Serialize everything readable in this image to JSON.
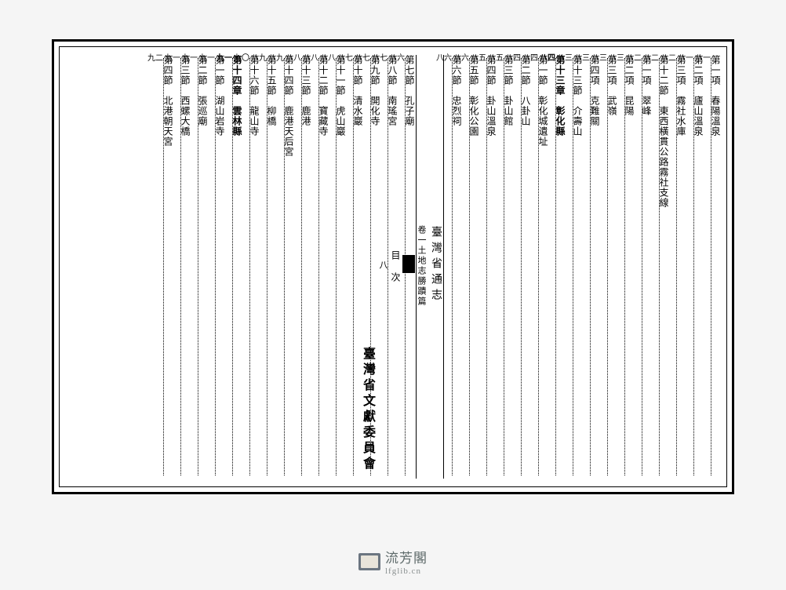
{
  "background_color": "#f5f5f5",
  "page_bg": "#ffffff",
  "border_color": "#000000",
  "font_family": "Microsoft JhengHei, PMingLiU, serif",
  "spine": {
    "title": "臺灣省通志",
    "subtitle": "卷一土地志勝蹟篇",
    "black_label": "",
    "mid": "目　次",
    "page_num": "八",
    "bottom": "臺灣省文獻委員會"
  },
  "entries_right": [
    {
      "label": "第一項　春陽溫泉",
      "page": "八一"
    },
    {
      "label": "第二項　廬山溫泉",
      "page": "八一"
    },
    {
      "label": "第三項　霧社水庫",
      "page": "八二"
    },
    {
      "label": "第十二節　東西橫貫公路霧社支線",
      "page": "八二"
    },
    {
      "label": "第一項　翠峰",
      "page": "八二"
    },
    {
      "label": "第二項　昆陽",
      "page": "八三"
    },
    {
      "label": "第三項　武嶺",
      "page": "八三"
    },
    {
      "label": "第四項　克難關",
      "page": "八三"
    },
    {
      "label": "第十三節　介壽山",
      "page": "八三"
    },
    {
      "label": "第十三章　彰化縣",
      "page": "八四"
    },
    {
      "label": "第一節　彰化城遺址",
      "page": "八四"
    },
    {
      "label": "第二節　八卦山",
      "page": "八四"
    },
    {
      "label": "第三節　卦山館",
      "page": "八五"
    },
    {
      "label": "第四節　卦山溫泉",
      "page": "八五"
    },
    {
      "label": "第五節　彰化公園",
      "page": "八六"
    },
    {
      "label": "第六節　忠烈祠",
      "page": "八六"
    }
  ],
  "entries_left": [
    {
      "label": "第七節　孔子廟",
      "page": "八六"
    },
    {
      "label": "第八節　南瑤宮",
      "page": "八七"
    },
    {
      "label": "第九節　開化寺",
      "page": "八七"
    },
    {
      "label": "第十節　清水巖",
      "page": "八七"
    },
    {
      "label": "第十一節　虎山巖",
      "page": "八八"
    },
    {
      "label": "第十二節　寶藏寺",
      "page": "八八"
    },
    {
      "label": "第十三節　鹿港",
      "page": "八八"
    },
    {
      "label": "第十四節　鹿港天后宮",
      "page": "八九"
    },
    {
      "label": "第十五節　柳橋",
      "page": "八九"
    },
    {
      "label": "第十六節　龍山寺",
      "page": "九〇"
    },
    {
      "label": "第十四章　雲林縣",
      "page": "九一"
    },
    {
      "label": "第一節　湖山岩寺",
      "page": "九一"
    },
    {
      "label": "第二節　張巡廟",
      "page": "九一"
    },
    {
      "label": "第三節　西螺大橋",
      "page": "九一"
    },
    {
      "label": "第四節　北港朝天宮",
      "page": "九二"
    }
  ],
  "watermark": {
    "name": "流芳閣",
    "url": "lfglib.cn"
  }
}
